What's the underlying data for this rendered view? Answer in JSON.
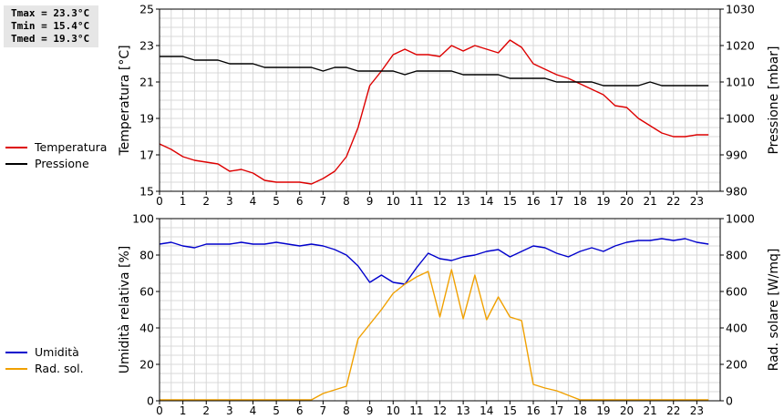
{
  "stats": {
    "tmax": "Tmax = 23.3°C",
    "tmin": "Tmin = 15.4°C",
    "tmed": "Tmed = 19.3°C"
  },
  "chart_data": [
    {
      "type": "line",
      "ylabel": "Temperatura [°C]",
      "y2label": "Pressione [mbar]",
      "xlim": [
        0,
        24
      ],
      "ylim": [
        15,
        25
      ],
      "y2lim": [
        980,
        1030
      ],
      "xticks": [
        0,
        1,
        2,
        3,
        4,
        5,
        6,
        7,
        8,
        9,
        10,
        11,
        12,
        13,
        14,
        15,
        16,
        17,
        18,
        19,
        20,
        21,
        22,
        23
      ],
      "yticks": [
        15,
        17,
        19,
        21,
        23,
        25
      ],
      "y2ticks": [
        980,
        990,
        1000,
        1010,
        1020,
        1030
      ],
      "grid": true,
      "legend_position": "left",
      "series": [
        {
          "name": "Temperatura",
          "color": "#dd0000",
          "axis": "left",
          "x": [
            0,
            0.5,
            1,
            1.5,
            2,
            2.5,
            3,
            3.5,
            4,
            4.5,
            5,
            5.5,
            6,
            6.5,
            7,
            7.5,
            8,
            8.5,
            9,
            9.5,
            10,
            10.5,
            11,
            11.5,
            12,
            12.5,
            13,
            13.5,
            14,
            14.5,
            15,
            15.5,
            16,
            16.5,
            17,
            17.5,
            18,
            18.5,
            19,
            19.5,
            20,
            20.5,
            21,
            21.5,
            22,
            22.5,
            23,
            23.5
          ],
          "values": [
            17.6,
            17.3,
            16.9,
            16.7,
            16.6,
            16.5,
            16.1,
            16.2,
            16.0,
            15.6,
            15.5,
            15.5,
            15.5,
            15.4,
            15.7,
            16.1,
            16.9,
            18.5,
            20.8,
            21.6,
            22.5,
            22.8,
            22.5,
            22.5,
            22.4,
            23.0,
            22.7,
            23.0,
            22.8,
            22.6,
            23.3,
            22.9,
            22.0,
            21.7,
            21.4,
            21.2,
            20.9,
            20.6,
            20.3,
            19.7,
            19.6,
            19.0,
            18.6,
            18.2,
            18.0,
            18.0,
            18.1,
            18.1
          ]
        },
        {
          "name": "Pressione",
          "color": "#000000",
          "axis": "right",
          "x": [
            0,
            0.5,
            1,
            1.5,
            2,
            2.5,
            3,
            3.5,
            4,
            4.5,
            5,
            5.5,
            6,
            6.5,
            7,
            7.5,
            8,
            8.5,
            9,
            9.5,
            10,
            10.5,
            11,
            11.5,
            12,
            12.5,
            13,
            13.5,
            14,
            14.5,
            15,
            15.5,
            16,
            16.5,
            17,
            17.5,
            18,
            18.5,
            19,
            19.5,
            20,
            20.5,
            21,
            21.5,
            22,
            22.5,
            23,
            23.5
          ],
          "values": [
            1017,
            1017,
            1017,
            1016,
            1016,
            1016,
            1015,
            1015,
            1015,
            1014,
            1014,
            1014,
            1014,
            1014,
            1013,
            1014,
            1014,
            1013,
            1013,
            1013,
            1013,
            1012,
            1013,
            1013,
            1013,
            1013,
            1012,
            1012,
            1012,
            1012,
            1011,
            1011,
            1011,
            1011,
            1010,
            1010,
            1010,
            1010,
            1009,
            1009,
            1009,
            1009,
            1010,
            1009,
            1009,
            1009,
            1009,
            1009
          ]
        }
      ]
    },
    {
      "type": "line",
      "ylabel": "Umidità relativa [%]",
      "y2label": "Rad. solare [W/mq]",
      "xlim": [
        0,
        24
      ],
      "ylim": [
        0,
        100
      ],
      "y2lim": [
        0,
        1000
      ],
      "xticks": [
        0,
        1,
        2,
        3,
        4,
        5,
        6,
        7,
        8,
        9,
        10,
        11,
        12,
        13,
        14,
        15,
        16,
        17,
        18,
        19,
        20,
        21,
        22,
        23
      ],
      "yticks": [
        0,
        20,
        40,
        60,
        80,
        100
      ],
      "y2ticks": [
        0,
        200,
        400,
        600,
        800,
        1000
      ],
      "grid": true,
      "legend_position": "left",
      "series": [
        {
          "name": "Umidità",
          "color": "#0000cc",
          "axis": "left",
          "x": [
            0,
            0.5,
            1,
            1.5,
            2,
            2.5,
            3,
            3.5,
            4,
            4.5,
            5,
            5.5,
            6,
            6.5,
            7,
            7.5,
            8,
            8.5,
            9,
            9.5,
            10,
            10.5,
            11,
            11.5,
            12,
            12.5,
            13,
            13.5,
            14,
            14.5,
            15,
            15.5,
            16,
            16.5,
            17,
            17.5,
            18,
            18.5,
            19,
            19.5,
            20,
            20.5,
            21,
            21.5,
            22,
            22.5,
            23,
            23.5
          ],
          "values": [
            86,
            87,
            85,
            84,
            86,
            86,
            86,
            87,
            86,
            86,
            87,
            86,
            85,
            86,
            85,
            83,
            80,
            74,
            65,
            69,
            65,
            64,
            73,
            81,
            78,
            77,
            79,
            80,
            82,
            83,
            79,
            82,
            85,
            84,
            81,
            79,
            82,
            84,
            82,
            85,
            87,
            88,
            88,
            89,
            88,
            89,
            87,
            86
          ]
        },
        {
          "name": "Rad. sol.",
          "color": "#f0a000",
          "axis": "right",
          "x": [
            0,
            0.5,
            1,
            1.5,
            2,
            2.5,
            3,
            3.5,
            4,
            4.5,
            5,
            5.5,
            6,
            6.5,
            7,
            7.5,
            8,
            8.5,
            9,
            9.5,
            10,
            10.5,
            11,
            11.5,
            12,
            12.5,
            13,
            13.5,
            14,
            14.5,
            15,
            15.5,
            16,
            16.5,
            17,
            17.5,
            18,
            18.5,
            19,
            19.5,
            20,
            20.5,
            21,
            21.5,
            22,
            22.5,
            23,
            23.5
          ],
          "values": [
            5,
            5,
            5,
            5,
            5,
            5,
            5,
            5,
            5,
            5,
            5,
            5,
            5,
            5,
            40,
            60,
            80,
            340,
            420,
            500,
            590,
            640,
            680,
            710,
            460,
            720,
            450,
            690,
            445,
            570,
            460,
            440,
            90,
            70,
            55,
            30,
            5,
            5,
            5,
            5,
            5,
            5,
            5,
            5,
            5,
            5,
            5,
            5
          ]
        }
      ]
    }
  ]
}
